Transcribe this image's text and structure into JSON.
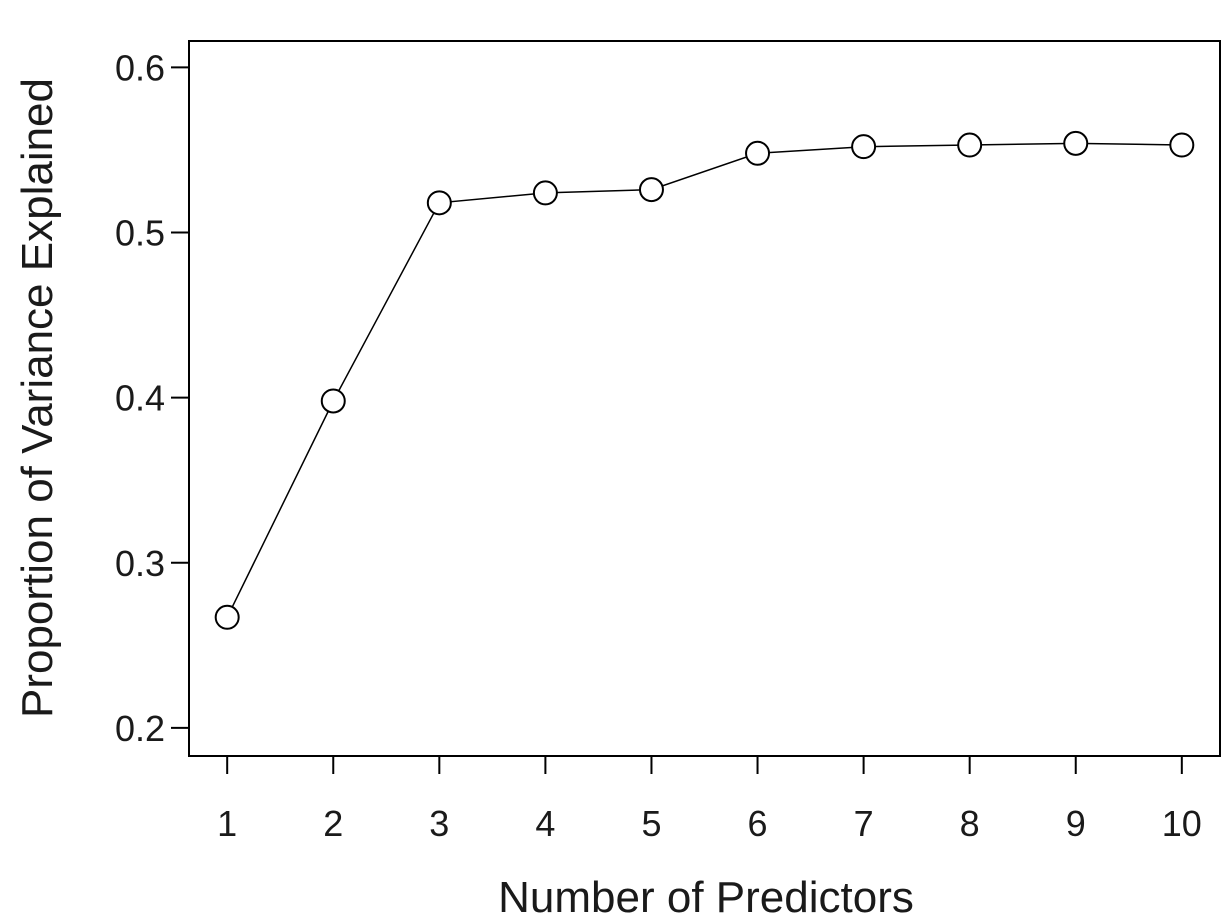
{
  "chart_data": {
    "type": "line",
    "title": "",
    "xlabel": "Number of Predictors",
    "ylabel": "Proportion of Variance Explained",
    "x": [
      1,
      2,
      3,
      4,
      5,
      6,
      7,
      8,
      9,
      10
    ],
    "series": [
      {
        "values": [
          0.267,
          0.398,
          0.518,
          0.524,
          0.526,
          0.548,
          0.552,
          0.553,
          0.554,
          0.553
        ]
      }
    ],
    "xlim": [
      0.64,
      10.36
    ],
    "ylim": [
      0.183,
      0.616
    ],
    "xticks": [
      1,
      2,
      3,
      4,
      5,
      6,
      7,
      8,
      9,
      10
    ],
    "xtick_labels": [
      "1",
      "2",
      "3",
      "4",
      "5",
      "6",
      "7",
      "8",
      "9",
      "10"
    ],
    "yticks": [
      0.2,
      0.3,
      0.4,
      0.5,
      0.6
    ],
    "ytick_labels": [
      "0.2",
      "0.3",
      "0.4",
      "0.5",
      "0.6"
    ],
    "grid": false,
    "marker": "open-circle",
    "line_color": "#000000"
  }
}
